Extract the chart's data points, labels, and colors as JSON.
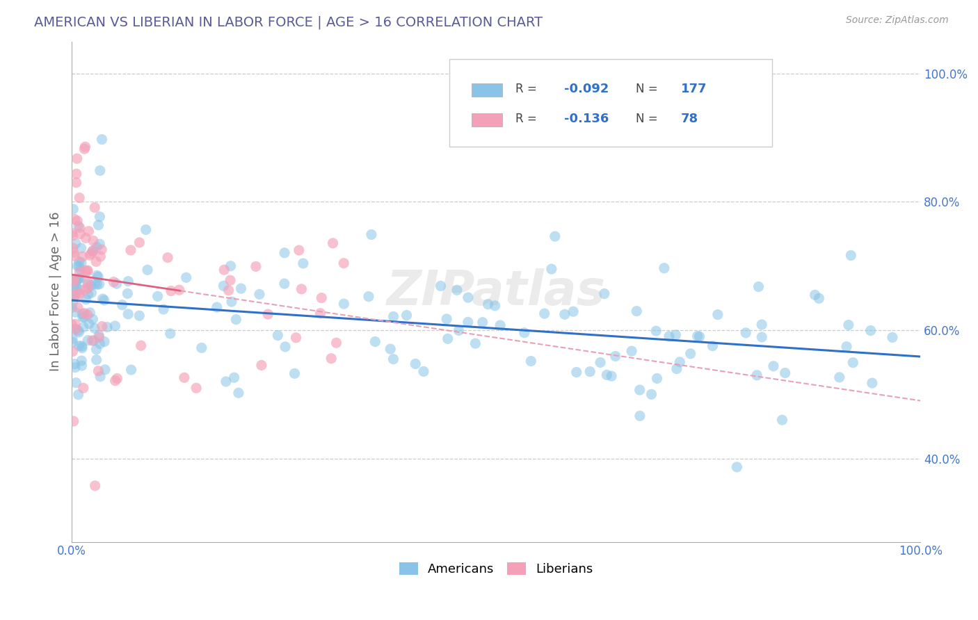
{
  "title": "AMERICAN VS LIBERIAN IN LABOR FORCE | AGE > 16 CORRELATION CHART",
  "source_text": "Source: ZipAtlas.com",
  "ylabel": "In Labor Force | Age > 16",
  "xlim": [
    0.0,
    1.0
  ],
  "ylim": [
    0.27,
    1.05
  ],
  "y_ticks": [
    0.4,
    0.6,
    0.8,
    1.0
  ],
  "american_color": "#89C4E8",
  "liberian_color": "#F4A0B8",
  "american_line_color": "#3070C8",
  "liberian_line_color": "#E06080",
  "liberian_line_dash_color": "#E8A0B8",
  "R_american": -0.092,
  "N_american": 177,
  "R_liberian": -0.136,
  "N_liberian": 78,
  "watermark": "ZIPatlas",
  "background_color": "#FFFFFF",
  "grid_color": "#CCCCCC",
  "title_color": "#5A5A9A",
  "legend_R_color": "#3070C8",
  "legend_N_color": "#3070C8",
  "seed": 12345
}
